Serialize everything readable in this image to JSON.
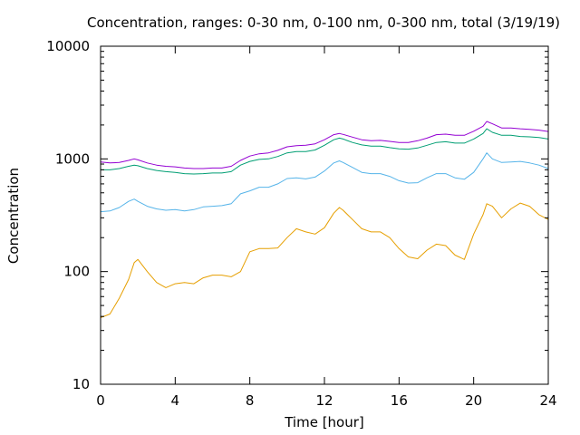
{
  "chart_data": {
    "type": "line",
    "title": "Concentration, ranges: 0-30 nm, 0-100 nm, 0-300 nm, total (3/19/19)",
    "xlabel": "Time [hour]",
    "ylabel": "Concentration",
    "xlim": [
      0,
      24
    ],
    "ylim": [
      10,
      10000
    ],
    "yscale": "log",
    "grid": false,
    "legend": "none",
    "x_ticks": [
      "0",
      "4",
      "8",
      "12",
      "16",
      "20",
      "24"
    ],
    "y_ticks": [
      "10",
      "100",
      "1000",
      "10000"
    ],
    "x": [
      0,
      0.5,
      1,
      1.5,
      1.8,
      2,
      2.5,
      3,
      3.5,
      4,
      4.5,
      5,
      5.5,
      6,
      6.5,
      7,
      7.5,
      8,
      8.5,
      9,
      9.5,
      10,
      10.5,
      11,
      11.5,
      12,
      12.5,
      12.8,
      13,
      13.5,
      14,
      14.5,
      15,
      15.5,
      16,
      16.5,
      17,
      17.5,
      18,
      18.5,
      19,
      19.5,
      20,
      20.5,
      20.7,
      21,
      21.5,
      22,
      22.5,
      23,
      23.5,
      24
    ],
    "series": [
      {
        "color": "#e69f00",
        "values": [
          39,
          42,
          58,
          85,
          120,
          128,
          100,
          80,
          72,
          78,
          80,
          78,
          88,
          93,
          93,
          90,
          100,
          150,
          160,
          160,
          162,
          200,
          240,
          225,
          215,
          245,
          330,
          370,
          350,
          290,
          240,
          225,
          225,
          200,
          160,
          135,
          130,
          155,
          175,
          170,
          140,
          128,
          215,
          320,
          400,
          380,
          300,
          360,
          405,
          380,
          320,
          290
        ]
      },
      {
        "color": "#56b4e9",
        "values": [
          340,
          345,
          370,
          420,
          440,
          420,
          380,
          360,
          350,
          355,
          345,
          355,
          375,
          380,
          385,
          400,
          490,
          520,
          560,
          560,
          600,
          670,
          680,
          665,
          690,
          780,
          920,
          960,
          930,
          840,
          760,
          740,
          740,
          700,
          640,
          610,
          615,
          680,
          740,
          740,
          680,
          660,
          760,
          1000,
          1130,
          1000,
          930,
          940,
          950,
          920,
          880,
          820
        ]
      },
      {
        "color": "#009e73",
        "values": [
          800,
          800,
          820,
          860,
          880,
          870,
          820,
          790,
          770,
          760,
          740,
          735,
          740,
          750,
          750,
          770,
          880,
          950,
          990,
          1000,
          1050,
          1130,
          1160,
          1160,
          1200,
          1320,
          1480,
          1530,
          1500,
          1400,
          1330,
          1300,
          1300,
          1260,
          1230,
          1220,
          1250,
          1320,
          1400,
          1420,
          1380,
          1380,
          1500,
          1680,
          1850,
          1720,
          1620,
          1620,
          1580,
          1570,
          1550,
          1500
        ]
      },
      {
        "color": "#9400d3",
        "values": [
          940,
          920,
          930,
          970,
          1000,
          980,
          920,
          880,
          860,
          850,
          830,
          820,
          820,
          830,
          830,
          860,
          970,
          1060,
          1110,
          1130,
          1190,
          1280,
          1310,
          1320,
          1360,
          1480,
          1640,
          1680,
          1650,
          1560,
          1480,
          1450,
          1460,
          1430,
          1400,
          1400,
          1450,
          1530,
          1640,
          1660,
          1620,
          1620,
          1760,
          1950,
          2150,
          2050,
          1880,
          1880,
          1850,
          1830,
          1800,
          1750
        ]
      }
    ]
  }
}
